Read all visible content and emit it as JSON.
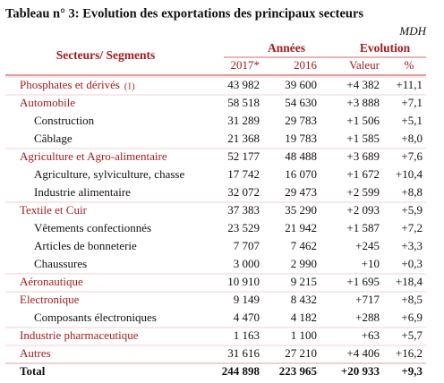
{
  "title": "Tableau n° 3: Evolution des exportations des principaux secteurs",
  "unit": "MDH",
  "header": {
    "sector": "Secteurs/ Segments",
    "years": "Années",
    "evolution": "Evolution",
    "y2017": "2017*",
    "y2016": "2016",
    "value": "Valeur",
    "pct": "%"
  },
  "rows": [
    {
      "label": "Phosphates et dérivés",
      "note": "(1)",
      "cells": [
        "43 982",
        "39 600",
        "+4 382",
        "+11,1"
      ]
    },
    {
      "label": "Automobile",
      "cells": [
        "58 518",
        "54 630",
        "+3 888",
        "+7,1"
      ]
    },
    {
      "label": "Construction",
      "cells": [
        "31 289",
        "29 783",
        "+1 506",
        "+5,1"
      ]
    },
    {
      "label": "Câblage",
      "cells": [
        "21 368",
        "19 783",
        "+1 585",
        "+8,0"
      ]
    },
    {
      "label": "Agriculture et Agro-alimentaire",
      "cells": [
        "52 177",
        "48 488",
        "+3 689",
        "+7,6"
      ]
    },
    {
      "label": "Agriculture, sylviculture, chasse",
      "cells": [
        "17 742",
        "16 070",
        "+1 672",
        "+10,4"
      ]
    },
    {
      "label": "Industrie alimentaire",
      "cells": [
        "32 072",
        "29 473",
        "+2 599",
        "+8,8"
      ]
    },
    {
      "label": "Textile et Cuir",
      "cells": [
        "37 383",
        "35 290",
        "+2 093",
        "+5,9"
      ]
    },
    {
      "label": "Vêtements confectionnés",
      "cells": [
        "23 529",
        "21 942",
        "+1 587",
        "+7,2"
      ]
    },
    {
      "label": "Articles de bonneterie",
      "cells": [
        "7 707",
        "7 462",
        "+245",
        "+3,3"
      ]
    },
    {
      "label": "Chaussures",
      "cells": [
        "3 000",
        "2 990",
        "+10",
        "+0,3"
      ]
    },
    {
      "label": "Aéronautique",
      "cells": [
        "10 910",
        "9 215",
        "+1 695",
        "+18,4"
      ]
    },
    {
      "label": "Electronique",
      "cells": [
        "9 149",
        "8 432",
        "+717",
        "+8,5"
      ]
    },
    {
      "label": "Composants électroniques",
      "cells": [
        "4 470",
        "4 182",
        "+288",
        "+6,9"
      ]
    },
    {
      "label": "Industrie pharmaceutique",
      "cells": [
        "1 163",
        "1 100",
        "+63",
        "+5,7"
      ]
    },
    {
      "label": "Autres",
      "cells": [
        "31 616",
        "27 210",
        "+4 406",
        "+16,2"
      ]
    },
    {
      "label": "Total",
      "cells": [
        "244 898",
        "223 965",
        "+20 933",
        "+9,3"
      ]
    }
  ]
}
